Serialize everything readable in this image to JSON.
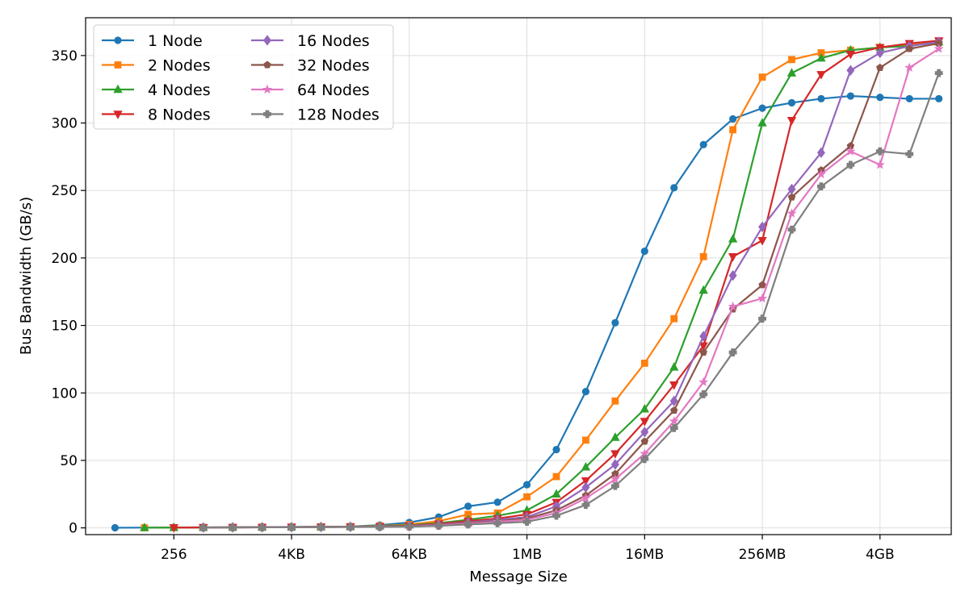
{
  "chart_data": {
    "type": "line",
    "xlabel": "Message Size",
    "ylabel": "Bus Bandwidth (GB/s)",
    "x_scale": "log2",
    "x_unit": "bytes",
    "x": [
      64,
      128,
      256,
      512,
      1024,
      2048,
      4096,
      8192,
      16384,
      32768,
      65536,
      131072,
      262144,
      524288,
      1048576,
      2097152,
      4194304,
      8388608,
      16777216,
      33554432,
      67108864,
      134217728,
      268435456,
      536870912,
      1073741824,
      2147483648,
      4294967296,
      8589934592,
      17179869184
    ],
    "xlim": [
      32,
      23000000000
    ],
    "ylim": [
      -5,
      378
    ],
    "x_ticks": [
      {
        "value": 256,
        "label": "256"
      },
      {
        "value": 4096,
        "label": "4KB"
      },
      {
        "value": 65536,
        "label": "64KB"
      },
      {
        "value": 1048576,
        "label": "1MB"
      },
      {
        "value": 16777216,
        "label": "16MB"
      },
      {
        "value": 268435456,
        "label": "256MB"
      },
      {
        "value": 4294967296,
        "label": "4GB"
      }
    ],
    "y_ticks": [
      0,
      50,
      100,
      150,
      200,
      250,
      300,
      350
    ],
    "grid": true,
    "legend_position": "top-left",
    "legend_columns": 2,
    "series": [
      {
        "name": "1 Node",
        "color": "#1f77b4",
        "marker": "circle",
        "values": [
          0.1,
          0.2,
          0.3,
          0.4,
          0.5,
          0.6,
          0.7,
          0.8,
          1.0,
          2.0,
          4.0,
          8.0,
          16.0,
          19.0,
          32.0,
          58.0,
          101.0,
          152.0,
          205.0,
          252.0,
          284.0,
          303.0,
          311.0,
          315.0,
          318.0,
          320.0,
          319.0,
          318.0,
          318.0
        ]
      },
      {
        "name": "2 Nodes",
        "color": "#ff7f0e",
        "marker": "square",
        "values": [
          null,
          0.1,
          0.2,
          0.3,
          0.4,
          0.5,
          0.6,
          0.7,
          1.0,
          1.5,
          2.5,
          5.0,
          10.0,
          11.0,
          23.0,
          38.0,
          65.0,
          94.0,
          122.0,
          155.0,
          201.0,
          295.0,
          334.0,
          347.0,
          352.0,
          354.0,
          356.0,
          358.0,
          360.0
        ]
      },
      {
        "name": "4 Nodes",
        "color": "#2ca02c",
        "marker": "triangle-up",
        "values": [
          null,
          0.1,
          0.2,
          0.3,
          0.4,
          0.5,
          0.6,
          0.7,
          0.9,
          1.3,
          2.0,
          3.5,
          6.0,
          9.0,
          13.0,
          25.0,
          45.0,
          67.0,
          88.0,
          119.0,
          176.0,
          214.0,
          300.0,
          337.0,
          348.0,
          354.0,
          356.0,
          357.0,
          360.0
        ]
      },
      {
        "name": "8 Nodes",
        "color": "#d62728",
        "marker": "triangle-down",
        "values": [
          null,
          null,
          0.2,
          0.3,
          0.4,
          0.5,
          0.6,
          0.7,
          0.8,
          1.1,
          1.6,
          3.0,
          5.0,
          7.0,
          10.0,
          19.0,
          35.0,
          55.0,
          79.0,
          106.0,
          135.0,
          201.0,
          213.0,
          302.0,
          336.0,
          351.0,
          356.0,
          359.0,
          361.0
        ]
      },
      {
        "name": "16 Nodes",
        "color": "#9467bd",
        "marker": "diamond",
        "values": [
          null,
          null,
          null,
          0.3,
          0.4,
          0.5,
          0.6,
          0.7,
          0.8,
          1.0,
          1.4,
          2.5,
          4.0,
          6.0,
          8.0,
          16.0,
          30.0,
          47.0,
          71.0,
          94.0,
          142.0,
          187.0,
          223.0,
          251.0,
          278.0,
          339.0,
          352.0,
          357.0,
          360.0
        ]
      },
      {
        "name": "32 Nodes",
        "color": "#8c564b",
        "marker": "pentagon",
        "values": [
          null,
          null,
          null,
          0.2,
          0.3,
          0.4,
          0.5,
          0.6,
          0.7,
          0.9,
          1.2,
          2.0,
          3.5,
          5.0,
          7.0,
          13.0,
          24.0,
          40.0,
          64.0,
          87.0,
          130.0,
          162.0,
          180.0,
          245.0,
          265.0,
          283.0,
          341.0,
          355.0,
          359.0
        ]
      },
      {
        "name": "64 Nodes",
        "color": "#e377c2",
        "marker": "star",
        "values": [
          null,
          null,
          null,
          0.2,
          0.3,
          0.4,
          0.5,
          0.6,
          0.7,
          0.8,
          1.0,
          1.8,
          3.0,
          4.5,
          6.0,
          11.0,
          22.0,
          36.0,
          55.0,
          79.0,
          108.0,
          164.0,
          170.0,
          233.0,
          262.0,
          279.0,
          269.0,
          341.0,
          355.0
        ]
      },
      {
        "name": "128 Nodes",
        "color": "#7f7f7f",
        "marker": "x-filled",
        "values": [
          null,
          null,
          null,
          0.2,
          0.3,
          0.4,
          0.5,
          0.6,
          0.7,
          0.8,
          0.9,
          1.5,
          2.5,
          3.5,
          4.5,
          9.0,
          17.0,
          31.0,
          51.0,
          74.0,
          99.0,
          130.0,
          155.0,
          221.0,
          253.0,
          269.0,
          279.0,
          277.0,
          337.0
        ]
      }
    ]
  }
}
